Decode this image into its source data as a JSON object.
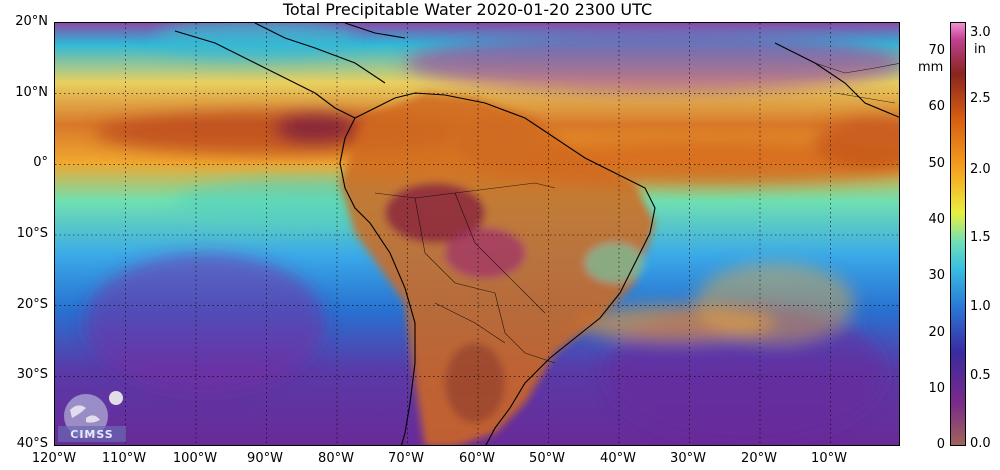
{
  "title": "Total Precipitable Water  2020-01-20 2300 UTC",
  "lat_labels": [
    "20°N",
    "10°N",
    "0°",
    "10°S",
    "20°S",
    "30°S",
    "40°S"
  ],
  "lon_labels": [
    "120°W",
    "110°W",
    "100°W",
    "90°W",
    "80°W",
    "70°W",
    "60°W",
    "50°W",
    "40°W",
    "30°W",
    "20°W",
    "10°W"
  ],
  "colorbar": {
    "unit_mm": "mm",
    "unit_in": "in",
    "mm_ticks": [
      "70",
      "60",
      "50",
      "40",
      "30",
      "20",
      "10",
      "0"
    ],
    "in_ticks": [
      "3.0",
      "2.5",
      "2.0",
      "1.5",
      "1.0",
      "0.5",
      "0.0"
    ]
  },
  "logo": {
    "text": "CIMSS"
  },
  "colors": {
    "ocean_dry": "#7a2a8a",
    "ocean_mid": "#3aa0e0",
    "moist_band": "#e0782a",
    "very_moist": "#8a2a40",
    "land_moist": "#d06a20"
  }
}
